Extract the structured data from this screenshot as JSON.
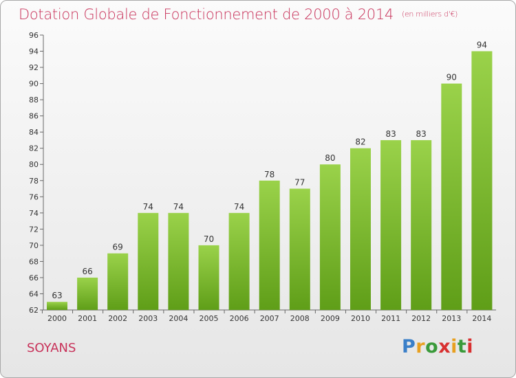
{
  "chart_data": {
    "type": "bar",
    "title": "Dotation Globale de Fonctionnement de 2000 à 2014",
    "subtitle": "(en milliers d'€)",
    "categories": [
      "2000",
      "2001",
      "2002",
      "2003",
      "2004",
      "2005",
      "2006",
      "2007",
      "2008",
      "2009",
      "2010",
      "2011",
      "2012",
      "2013",
      "2014"
    ],
    "values": [
      63,
      66,
      69,
      74,
      74,
      70,
      74,
      78,
      77,
      80,
      82,
      83,
      83,
      90,
      94
    ],
    "ylim": [
      62,
      96
    ],
    "yticks": [
      62,
      64,
      66,
      68,
      70,
      72,
      74,
      76,
      78,
      80,
      82,
      84,
      86,
      88,
      90,
      92,
      94,
      96
    ],
    "grid": false,
    "bar_color": "#7ab82a"
  },
  "footer": {
    "commune": "SOYANS",
    "logo": [
      "P",
      "r",
      "o",
      "x",
      "i",
      "t",
      "i"
    ],
    "logo_colors": [
      "#3a7fc8",
      "#e8a020",
      "#3a9a3a",
      "#d83030",
      "#e8a020",
      "#3a9a3a",
      "#d83030"
    ]
  }
}
